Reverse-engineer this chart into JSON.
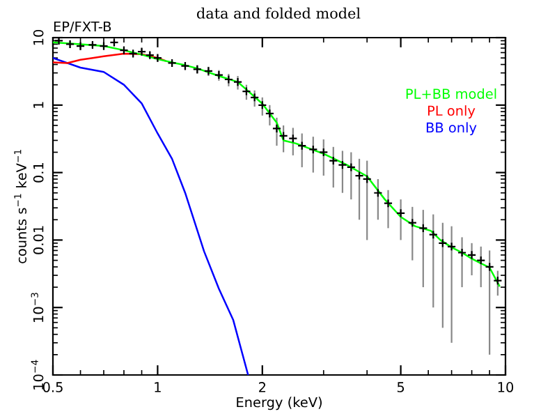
{
  "chart_data": {
    "type": "line",
    "title": "data and folded model",
    "xlabel": "Energy (keV)",
    "ylabel": "counts s$^{−1}$ keV$^{−1}$",
    "annotations": [
      "EP/FXT-B"
    ],
    "log": "xy",
    "xlim": [
      0.5,
      10
    ],
    "xticks": [
      0.5,
      1,
      2,
      5,
      10
    ],
    "ylim": [
      0.0001,
      10
    ],
    "yticks": [
      {
        "value": 0.0001,
        "label": "10$^{−4}$"
      },
      {
        "value": 0.001,
        "label": "10$^{−3}$"
      },
      0.01,
      0.1,
      1,
      10
    ],
    "grid": false,
    "legend": "top right",
    "series": [
      {
        "type": "scatter",
        "color": "#000000",
        "marker": "cross",
        "x": [
          0.52,
          0.56,
          0.6,
          0.65,
          0.7,
          0.75,
          0.8,
          0.85,
          0.9,
          0.95,
          1.0,
          1.1,
          1.2,
          1.3,
          1.4,
          1.5,
          1.6,
          1.7,
          1.8,
          1.9,
          2.0,
          2.1,
          2.2,
          2.3,
          2.45,
          2.6,
          2.8,
          3.0,
          3.2,
          3.4,
          3.6,
          3.8,
          4.0,
          4.3,
          4.6,
          5.0,
          5.4,
          5.8,
          6.2,
          6.6,
          7.0,
          7.5,
          8.0,
          8.5,
          9.0,
          9.5
        ],
        "values": [
          9.0,
          8.0,
          7.5,
          7.8,
          7.5,
          8.5,
          6.5,
          5.8,
          6.2,
          5.5,
          5.0,
          4.2,
          3.8,
          3.4,
          3.2,
          2.8,
          2.4,
          2.2,
          1.6,
          1.3,
          1.0,
          0.75,
          0.45,
          0.35,
          0.32,
          0.25,
          0.22,
          0.2,
          0.15,
          0.13,
          0.12,
          0.09,
          0.08,
          0.05,
          0.035,
          0.025,
          0.018,
          0.015,
          0.012,
          0.009,
          0.008,
          0.0065,
          0.006,
          0.005,
          0.004,
          0.0025
        ],
        "errors": [
          [
            8,
            10
          ],
          [
            7,
            9
          ],
          [
            6.5,
            8.5
          ],
          [
            7,
            8.6
          ],
          [
            6.7,
            8.3
          ],
          [
            7.6,
            9.4
          ],
          [
            5.8,
            7.2
          ],
          [
            5.2,
            6.4
          ],
          [
            5.5,
            6.9
          ],
          [
            4.9,
            6.1
          ],
          [
            4.4,
            5.6
          ],
          [
            3.7,
            4.7
          ],
          [
            3.3,
            4.3
          ],
          [
            2.9,
            3.9
          ],
          [
            2.7,
            3.7
          ],
          [
            2.3,
            3.3
          ],
          [
            1.9,
            2.9
          ],
          [
            1.7,
            2.7
          ],
          [
            1.2,
            2.0
          ],
          [
            0.95,
            1.65
          ],
          [
            0.7,
            1.3
          ],
          [
            0.5,
            1.0
          ],
          [
            0.25,
            0.65
          ],
          [
            0.2,
            0.5
          ],
          [
            0.18,
            0.46
          ],
          [
            0.12,
            0.38
          ],
          [
            0.1,
            0.34
          ],
          [
            0.09,
            0.31
          ],
          [
            0.06,
            0.24
          ],
          [
            0.05,
            0.21
          ],
          [
            0.04,
            0.2
          ],
          [
            0.02,
            0.16
          ],
          [
            0.01,
            0.15
          ],
          [
            0.02,
            0.08
          ],
          [
            0.015,
            0.055
          ],
          [
            0.01,
            0.04
          ],
          [
            0.005,
            0.031
          ],
          [
            0.002,
            0.028
          ],
          [
            0.001,
            0.024
          ],
          [
            0.0005,
            0.018
          ],
          [
            0.0003,
            0.016
          ],
          [
            0.002,
            0.011
          ],
          [
            0.003,
            0.009
          ],
          [
            0.002,
            0.008
          ],
          [
            0.0002,
            0.007
          ],
          [
            0.0015,
            0.0035
          ]
        ]
      },
      {
        "name": "PL+BB model",
        "color": "#00ff00",
        "x": [
          0.5,
          0.6,
          0.7,
          0.8,
          0.9,
          1.0,
          1.1,
          1.2,
          1.3,
          1.5,
          1.7,
          2.0,
          2.2,
          2.3,
          2.5,
          3.0,
          3.5,
          4.0,
          4.5,
          5.0,
          5.5,
          6.1,
          6.5,
          7.0,
          7.5,
          8.0,
          8.5,
          9.0,
          9.6
        ],
        "values": [
          8.5,
          8.0,
          7.5,
          6.5,
          5.6,
          4.8,
          4.3,
          3.9,
          3.5,
          2.7,
          2.2,
          1.05,
          0.55,
          0.3,
          0.27,
          0.19,
          0.13,
          0.088,
          0.04,
          0.022,
          0.016,
          0.0137,
          0.01,
          0.0078,
          0.0065,
          0.0053,
          0.0045,
          0.0039,
          0.0021
        ]
      },
      {
        "name": "PL only",
        "color": "#ff0000",
        "x": [
          0.5,
          0.55,
          0.6,
          0.65,
          0.7,
          0.8,
          0.9,
          1.0,
          1.05
        ],
        "values": [
          4.3,
          4.2,
          4.7,
          5.0,
          5.3,
          5.8,
          5.7,
          5.0,
          4.55
        ]
      },
      {
        "name": "BB only",
        "color": "#0000ff",
        "x": [
          0.5,
          0.6,
          0.7,
          0.8,
          0.9,
          1.0,
          1.1,
          1.2,
          1.36,
          1.5,
          1.65,
          1.82
        ],
        "values": [
          5.0,
          3.6,
          3.1,
          2.0,
          1.06,
          0.38,
          0.16,
          0.05,
          0.0068,
          0.0019,
          0.00065,
          0.0001
        ]
      }
    ]
  }
}
